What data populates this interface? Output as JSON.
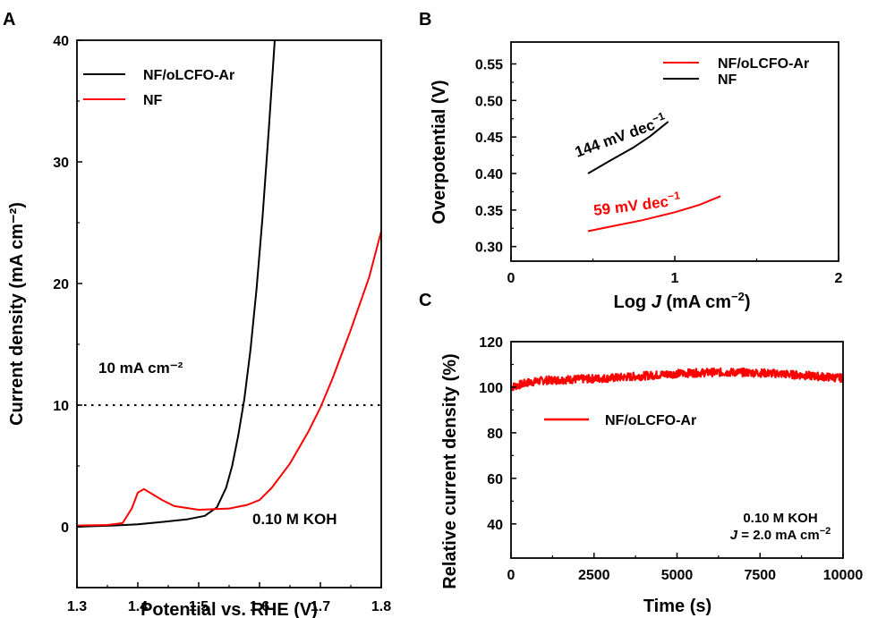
{
  "figure": {
    "panels": [
      "A",
      "B",
      "C"
    ]
  },
  "chart_data": [
    {
      "panel": "A",
      "type": "line",
      "xlabel": "Potential vs. RHE (V)",
      "ylabel": "Current density (mA cm⁻²)",
      "xlim": [
        1.3,
        1.8
      ],
      "ylim": [
        -5,
        40
      ],
      "xticks": [
        "1.3",
        "1.4",
        "1.5",
        "1.6",
        "1.7",
        "1.8"
      ],
      "yticks": [
        "0",
        "10",
        "20",
        "30",
        "40"
      ],
      "legend_position": "top-left",
      "annotations": [
        {
          "text": "10 mA cm⁻²"
        },
        {
          "text": "0.10 M KOH"
        }
      ],
      "reference_line": {
        "y": 10,
        "style": "dotted",
        "color": "#000000"
      },
      "series": [
        {
          "name": "NF/oLCFO-Ar",
          "color": "#000000",
          "x": [
            1.3,
            1.33,
            1.36,
            1.4,
            1.44,
            1.48,
            1.51,
            1.53,
            1.545,
            1.555,
            1.565,
            1.575,
            1.585,
            1.595,
            1.605,
            1.615,
            1.625
          ],
          "y": [
            0.0,
            0.05,
            0.1,
            0.2,
            0.4,
            0.6,
            0.9,
            1.6,
            3.2,
            5.0,
            7.5,
            10.5,
            14.5,
            19.5,
            25.5,
            32.5,
            40.0
          ]
        },
        {
          "name": "NF",
          "color": "#ff0000",
          "x": [
            1.3,
            1.35,
            1.375,
            1.39,
            1.4,
            1.41,
            1.42,
            1.44,
            1.46,
            1.5,
            1.55,
            1.58,
            1.6,
            1.62,
            1.65,
            1.68,
            1.7,
            1.72,
            1.75,
            1.78,
            1.8
          ],
          "y": [
            0.1,
            0.15,
            0.3,
            1.5,
            2.8,
            3.1,
            2.8,
            2.2,
            1.7,
            1.4,
            1.5,
            1.8,
            2.2,
            3.2,
            5.2,
            7.8,
            9.8,
            12.2,
            16.2,
            20.5,
            24.3
          ]
        }
      ]
    },
    {
      "panel": "B",
      "type": "line",
      "xlabel": "Log J (mA cm⁻²)",
      "ylabel": "Overpotential (V)",
      "xlim": [
        0,
        2
      ],
      "ylim": [
        0.28,
        0.58
      ],
      "xticks": [
        "0",
        "1",
        "2"
      ],
      "yticks": [
        "0.30",
        "0.35",
        "0.40",
        "0.45",
        "0.50",
        "0.55"
      ],
      "legend_position": "top-right",
      "annotations": [
        {
          "text": "144 mV dec⁻¹",
          "color": "#000000"
        },
        {
          "text": "59 mV dec⁻¹",
          "color": "#ff0000"
        }
      ],
      "series": [
        {
          "name": "NF/oLCFO-Ar",
          "color": "#ff0000",
          "x": [
            0.47,
            0.6,
            0.8,
            1.0,
            1.15,
            1.28
          ],
          "y": [
            0.321,
            0.327,
            0.336,
            0.347,
            0.357,
            0.369
          ]
        },
        {
          "name": "NF",
          "color": "#000000",
          "x": [
            0.47,
            0.6,
            0.75,
            0.85,
            0.96
          ],
          "y": [
            0.4,
            0.417,
            0.436,
            0.451,
            0.471
          ]
        }
      ]
    },
    {
      "panel": "C",
      "type": "line",
      "xlabel": "Time (s)",
      "ylabel": "Relative current density (%)",
      "xlim": [
        0,
        10000
      ],
      "ylim": [
        25,
        120
      ],
      "xticks": [
        "0",
        "2500",
        "5000",
        "7500",
        "10000"
      ],
      "yticks": [
        "40",
        "60",
        "80",
        "100",
        "120"
      ],
      "legend_position": "center-left",
      "annotations": [
        {
          "text": "0.10 M KOH"
        },
        {
          "text": "J = 2.0 mA cm⁻²"
        }
      ],
      "series": [
        {
          "name": "NF/oLCFO-Ar",
          "color": "#ff0000",
          "x": [
            0,
            500,
            1000,
            2000,
            3000,
            4000,
            5000,
            6000,
            7000,
            8000,
            9000,
            10000
          ],
          "y": [
            100,
            102,
            103,
            103.5,
            104,
            105,
            106,
            106.5,
            106.5,
            106,
            105,
            104
          ],
          "noise": 1.8
        }
      ]
    }
  ]
}
